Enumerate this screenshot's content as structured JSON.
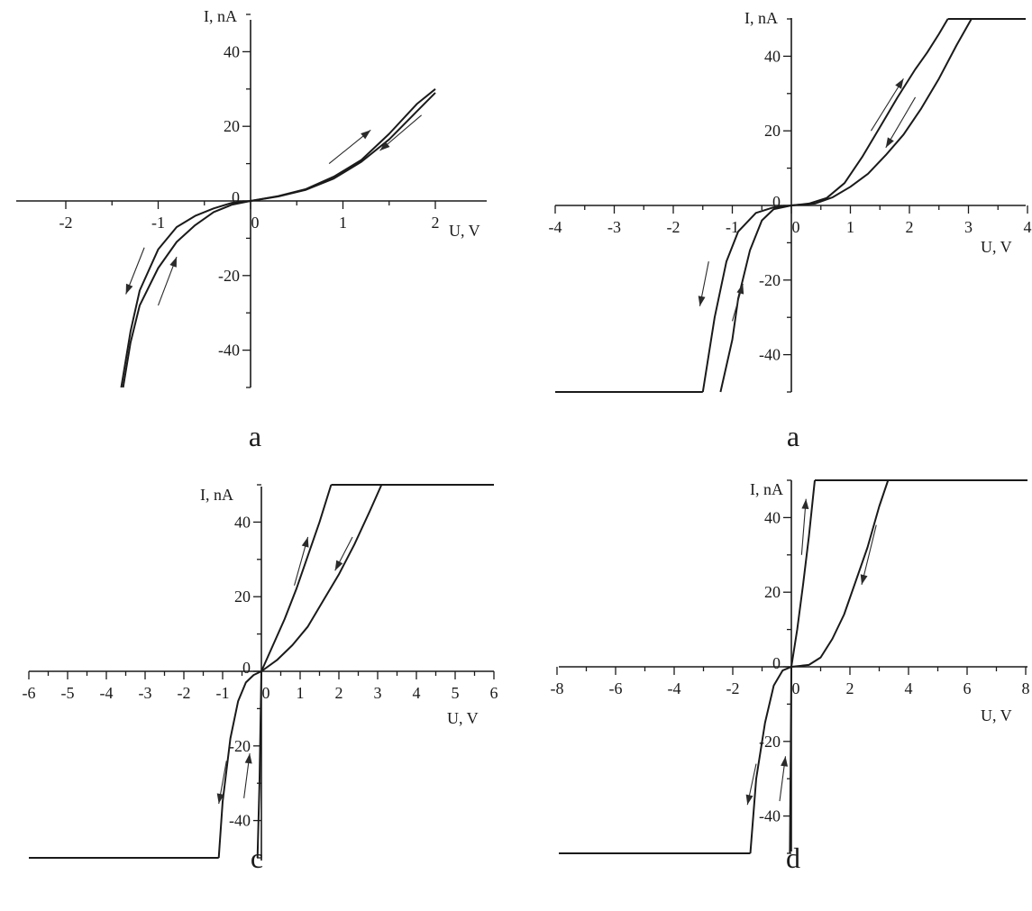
{
  "chart_data": [
    {
      "type": "line",
      "panel_label": "a",
      "xlabel": "U, V",
      "ylabel": "I, nA",
      "xlim": [
        -2.5,
        2.5
      ],
      "ylim": [
        -50,
        50
      ],
      "xticks": [
        -2,
        -1,
        0,
        1,
        2
      ],
      "yticks": [
        -40,
        -20,
        0,
        20,
        40
      ],
      "grid": false,
      "series": [
        {
          "x": [
            -1.4,
            -1.4,
            -1.3,
            -1.2,
            -1.0,
            -0.8,
            -0.6,
            -0.4,
            -0.2,
            0,
            0.3,
            0.6,
            0.9,
            1.2,
            1.5,
            1.8,
            2.0
          ],
          "y": [
            -50,
            -50,
            -35,
            -24,
            -13,
            -7,
            -4,
            -2,
            -0.5,
            0,
            1.2,
            3,
            6,
            10.5,
            16.5,
            24,
            29
          ]
        },
        {
          "x": [
            2.0,
            1.8,
            1.5,
            1.2,
            0.9,
            0.6,
            0.3,
            0,
            -0.2,
            -0.4,
            -0.6,
            -0.8,
            -1.0,
            -1.2,
            -1.3,
            -1.38,
            -1.38
          ],
          "y": [
            30,
            26,
            18,
            11,
            6.5,
            3.2,
            1.3,
            0,
            -1,
            -3,
            -6.5,
            -11,
            -18,
            -28,
            -38,
            -50,
            -50
          ]
        }
      ],
      "arrows": [
        {
          "from": [
            0.85,
            10
          ],
          "to": [
            1.3,
            19
          ]
        },
        {
          "from": [
            1.85,
            23
          ],
          "to": [
            1.4,
            13.5
          ]
        },
        {
          "from": [
            -1.15,
            -12.5
          ],
          "to": [
            -1.35,
            -25
          ]
        },
        {
          "from": [
            -1.0,
            -28
          ],
          "to": [
            -0.8,
            -15
          ]
        }
      ]
    },
    {
      "type": "line",
      "panel_label": "a",
      "xlabel": "U, V",
      "ylabel": "I, nA",
      "xlim": [
        -4,
        4
      ],
      "ylim": [
        -50,
        50
      ],
      "xticks": [
        -4,
        -3,
        -2,
        -1,
        0,
        1,
        2,
        3,
        4
      ],
      "yticks": [
        -40,
        -20,
        0,
        20,
        40
      ],
      "grid": false,
      "series": [
        {
          "x": [
            -1.2,
            -1.2,
            -1.0,
            -0.9,
            -0.7,
            -0.5,
            -0.3,
            0,
            0.3,
            0.6,
            0.9,
            1.2,
            1.5,
            1.8,
            2.1,
            2.3,
            2.5,
            2.65,
            2.65
          ],
          "y": [
            -50,
            -50,
            -36,
            -25,
            -12,
            -4,
            -1,
            0,
            0.5,
            2,
            6,
            13,
            21,
            29,
            36.5,
            41,
            46,
            50,
            50
          ]
        },
        {
          "x": [
            3.05,
            3.05,
            2.8,
            2.5,
            2.2,
            1.9,
            1.6,
            1.3,
            1.0,
            0.7,
            0.4,
            0,
            -0.3,
            -0.6,
            -0.9,
            -1.1,
            -1.3,
            -1.5,
            -1.5
          ],
          "y": [
            50,
            50,
            43,
            34,
            26,
            19,
            13.5,
            8.5,
            5,
            2.2,
            0.5,
            0,
            -0.5,
            -2,
            -7,
            -15,
            -30,
            -50,
            -50
          ]
        },
        {
          "x": [
            2.65,
            5
          ],
          "y": [
            50,
            50
          ]
        },
        {
          "x": [
            -5,
            -1.5
          ],
          "y": [
            -50,
            -50
          ]
        }
      ],
      "arrows": [
        {
          "from": [
            1.35,
            20
          ],
          "to": [
            1.9,
            34
          ]
        },
        {
          "from": [
            2.1,
            29
          ],
          "to": [
            1.6,
            15.5
          ]
        },
        {
          "from": [
            -1.4,
            -15
          ],
          "to": [
            -1.55,
            -27
          ]
        },
        {
          "from": [
            -1.0,
            -31
          ],
          "to": [
            -0.82,
            -21
          ]
        }
      ]
    },
    {
      "type": "line",
      "panel_label": "c",
      "xlabel": "U, V",
      "ylabel": "I, nA",
      "xlim": [
        -6,
        6
      ],
      "ylim": [
        -50,
        50
      ],
      "xticks": [
        -6,
        -5,
        -4,
        -3,
        -2,
        -1,
        0,
        1,
        2,
        3,
        4,
        5,
        6
      ],
      "yticks": [
        -40,
        -20,
        0,
        20,
        40
      ],
      "grid": false,
      "series": [
        {
          "x": [
            -0.1,
            -0.05,
            0,
            0.3,
            0.6,
            0.9,
            1.2,
            1.5,
            1.8,
            1.8
          ],
          "y": [
            -50,
            -30,
            0,
            7,
            14,
            22,
            31,
            40,
            50,
            50
          ]
        },
        {
          "x": [
            3.1,
            3.1,
            2.8,
            2.4,
            2.0,
            1.6,
            1.2,
            0.8,
            0.4,
            0,
            -0.2,
            -0.4,
            -0.6,
            -0.8,
            -1.0,
            -1.1,
            -1.1
          ],
          "y": [
            50,
            50,
            43,
            34,
            26,
            19,
            12,
            7,
            3,
            0,
            -1,
            -3,
            -8,
            -18,
            -35,
            -50,
            -50
          ]
        },
        {
          "x": [
            1.8,
            7
          ],
          "y": [
            50,
            50
          ]
        },
        {
          "x": [
            -7,
            -1.1
          ],
          "y": [
            -50,
            -50
          ]
        }
      ],
      "arrows": [
        {
          "from": [
            0.85,
            23
          ],
          "to": [
            1.2,
            36
          ]
        },
        {
          "from": [
            2.35,
            36
          ],
          "to": [
            1.9,
            27
          ]
        },
        {
          "from": [
            -0.9,
            -24
          ],
          "to": [
            -1.1,
            -35.5
          ]
        },
        {
          "from": [
            -0.45,
            -34
          ],
          "to": [
            -0.3,
            -22
          ]
        }
      ]
    },
    {
      "type": "line",
      "panel_label": "d",
      "xlabel": "U, V",
      "ylabel": "I, nA",
      "xlim": [
        -8,
        8
      ],
      "ylim": [
        -50,
        50
      ],
      "xticks": [
        -8,
        -6,
        -4,
        -2,
        0,
        2,
        4,
        6,
        8
      ],
      "yticks": [
        -40,
        -20,
        0,
        20,
        40
      ],
      "grid": false,
      "series": [
        {
          "x": [
            -0.05,
            -0.02,
            0,
            0.2,
            0.4,
            0.6,
            0.8,
            0.8
          ],
          "y": [
            -50,
            -20,
            0,
            10,
            22,
            35,
            50,
            50
          ]
        },
        {
          "x": [
            3.3,
            3.3,
            3.0,
            2.6,
            2.2,
            1.8,
            1.4,
            1.0,
            0.6,
            0,
            -0.3,
            -0.6,
            -0.9,
            -1.2,
            -1.4,
            -1.4
          ],
          "y": [
            50,
            50,
            43,
            32,
            23,
            14,
            7.5,
            2.5,
            0.5,
            0,
            -1,
            -5,
            -15,
            -30,
            -50,
            -50
          ]
        },
        {
          "x": [
            0.8,
            9
          ],
          "y": [
            50,
            50
          ]
        },
        {
          "x": [
            -9,
            -1.4
          ],
          "y": [
            -50,
            -50
          ]
        }
      ],
      "arrows": [
        {
          "from": [
            0.35,
            30
          ],
          "to": [
            0.5,
            45
          ]
        },
        {
          "from": [
            2.9,
            38
          ],
          "to": [
            2.4,
            22
          ]
        },
        {
          "from": [
            -1.2,
            -26
          ],
          "to": [
            -1.5,
            -37
          ]
        },
        {
          "from": [
            -0.4,
            -36
          ],
          "to": [
            -0.2,
            -24
          ]
        }
      ]
    }
  ]
}
